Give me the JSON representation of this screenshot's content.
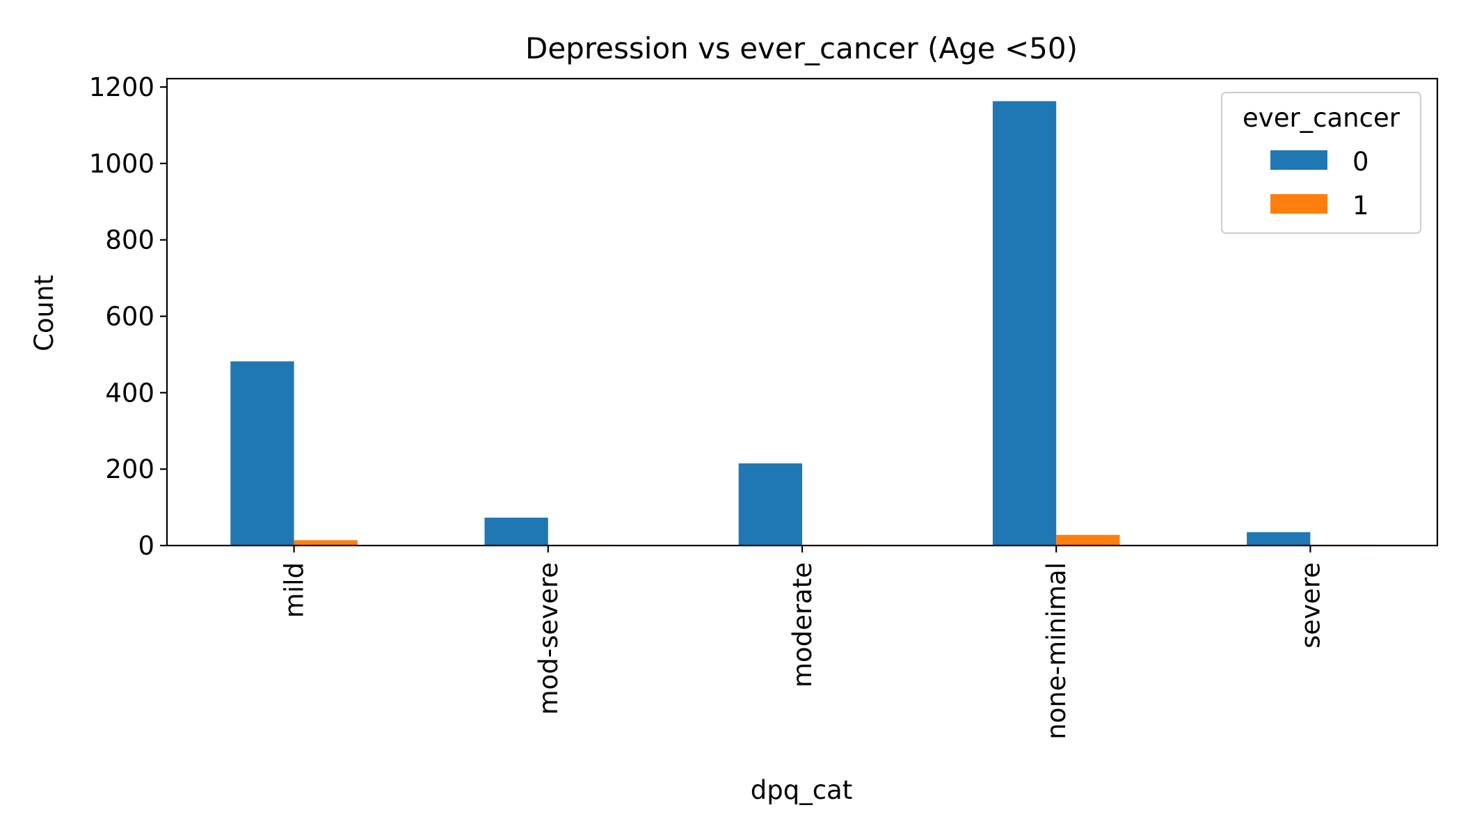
{
  "chart_data": {
    "type": "bar",
    "title": "Depression vs ever_cancer (Age <50)",
    "xlabel": "dpq_cat",
    "ylabel": "Count",
    "categories": [
      "mild",
      "mod-severe",
      "moderate",
      "none-minimal",
      "severe"
    ],
    "series": [
      {
        "name": "0",
        "color": "#1f77b4",
        "values": [
          482,
          73,
          215,
          1163,
          35
        ]
      },
      {
        "name": "1",
        "color": "#ff7f0e",
        "values": [
          14,
          2,
          2,
          28,
          2
        ]
      }
    ],
    "ylim": [
      0,
      1222
    ],
    "yticks": [
      0,
      200,
      400,
      600,
      800,
      1000,
      1200
    ],
    "legend": {
      "title": "ever_cancer",
      "position": "top-right"
    },
    "grid": false
  }
}
